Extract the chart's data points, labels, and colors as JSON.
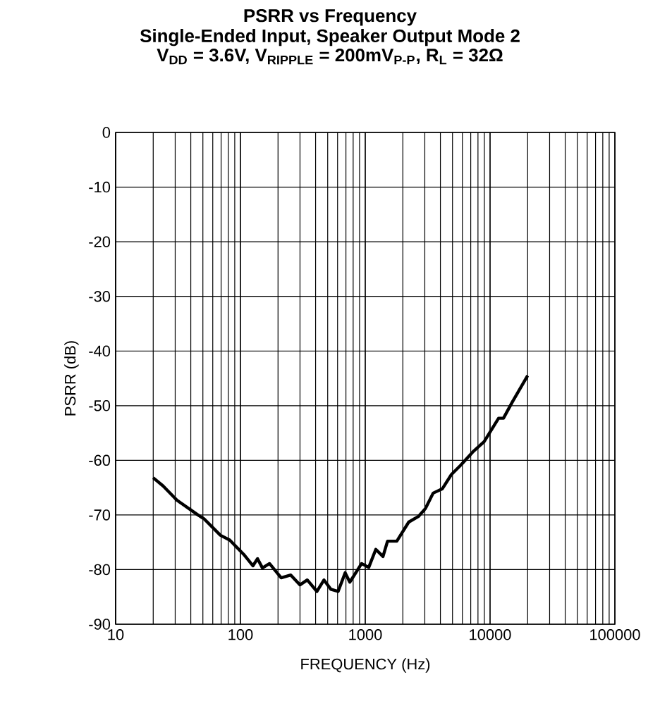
{
  "chart_data": {
    "type": "line",
    "title": "PSRR vs Frequency",
    "subtitle": "Single-Ended Input, Speaker Output Mode 2",
    "annotations": [
      "V$_{DD}$ = 3.6V, V$_{RIPPLE}$ = 200mV$_{P-P}$, R$_{L}$ = 32Ω"
    ],
    "xlabel": "FREQUENCY (Hz)",
    "ylabel": "PSRR (dB)",
    "log": "x",
    "grid": true,
    "xlim": [
      10,
      100000
    ],
    "xticks": [
      10,
      100,
      1000,
      10000,
      100000
    ],
    "ylim": [
      -90,
      0
    ],
    "yticks": [
      -90,
      -80,
      -70,
      -60,
      -50,
      -40,
      -30,
      -20,
      -10,
      0
    ],
    "series": [
      {
        "color": "#000000",
        "x": [
          20,
          24,
          31,
          45,
          51,
          69,
          82,
          106,
          126,
          137,
          150,
          171,
          212,
          253,
          300,
          343,
          410,
          467,
          530,
          606,
          690,
          752,
          935,
          1066,
          1215,
          1387,
          1508,
          1790,
          2230,
          2660,
          3040,
          3500,
          4150,
          4900,
          5820,
          7250,
          8960,
          11700,
          12800,
          15100,
          20000
        ],
        "values": [
          -63.2,
          -64.7,
          -67.3,
          -69.9,
          -70.7,
          -73.7,
          -74.6,
          -77.2,
          -79.3,
          -78.0,
          -79.7,
          -78.9,
          -81.5,
          -81.0,
          -82.8,
          -81.9,
          -84.0,
          -81.9,
          -83.6,
          -84.0,
          -80.6,
          -82.3,
          -78.9,
          -79.6,
          -76.3,
          -77.6,
          -74.8,
          -74.8,
          -71.3,
          -70.3,
          -68.8,
          -66.0,
          -65.2,
          -62.6,
          -60.9,
          -58.5,
          -56.6,
          -52.3,
          -52.3,
          -49.3,
          -44.5
        ]
      }
    ]
  }
}
